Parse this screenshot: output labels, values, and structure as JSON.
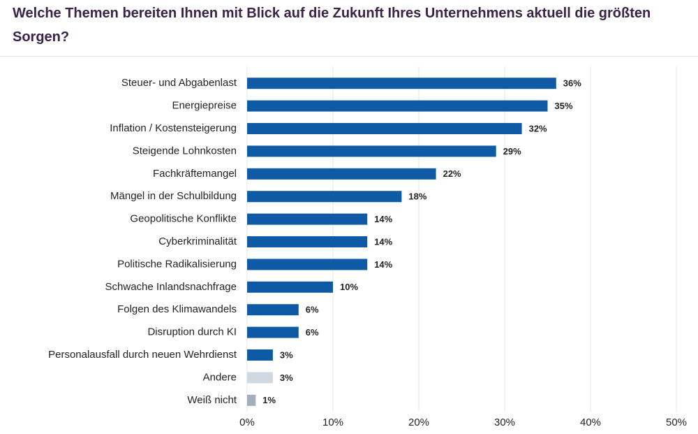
{
  "chart_data": {
    "type": "bar",
    "orientation": "horizontal",
    "title": "Welche Themen bereiten Ihnen mit Blick auf die Zukunft Ihres Unternehmens aktuell die größten Sorgen?",
    "categories": [
      "Steuer- und Abgabenlast",
      "Energiepreise",
      "Inflation / Kostensteigerung",
      "Steigende Lohnkosten",
      "Fachkräftemangel",
      "Mängel in der Schulbildung",
      "Geopolitische Konflikte",
      "Cyberkriminalität",
      "Politische Radikalisierung",
      "Schwache Inlandsnachfrage",
      "Folgen des Klimawandels",
      "Disruption durch KI",
      "Personalausfall durch neuen Wehrdienst",
      "Andere",
      "Weiß nicht"
    ],
    "values": [
      36,
      35,
      32,
      29,
      22,
      18,
      14,
      14,
      14,
      10,
      6,
      6,
      3,
      3,
      1
    ],
    "value_labels": [
      "36%",
      "35%",
      "32%",
      "29%",
      "22%",
      "18%",
      "14%",
      "14%",
      "14%",
      "10%",
      "6%",
      "6%",
      "3%",
      "3%",
      "1%"
    ],
    "colors": [
      "#0f5aa5",
      "#0f5aa5",
      "#0f5aa5",
      "#0f5aa5",
      "#0f5aa5",
      "#0f5aa5",
      "#0f5aa5",
      "#0f5aa5",
      "#0f5aa5",
      "#0f5aa5",
      "#0f5aa5",
      "#0f5aa5",
      "#0f5aa5",
      "#d0d9e2",
      "#a3b0bb"
    ],
    "xlim": [
      0,
      50
    ],
    "xticks": [
      {
        "value": 0,
        "label": "0%"
      },
      {
        "value": 10,
        "label": "10%"
      },
      {
        "value": 20,
        "label": "20%"
      },
      {
        "value": 30,
        "label": "30%"
      },
      {
        "value": 40,
        "label": "40%"
      },
      {
        "value": 50,
        "label": "50%"
      }
    ],
    "grid": true
  }
}
